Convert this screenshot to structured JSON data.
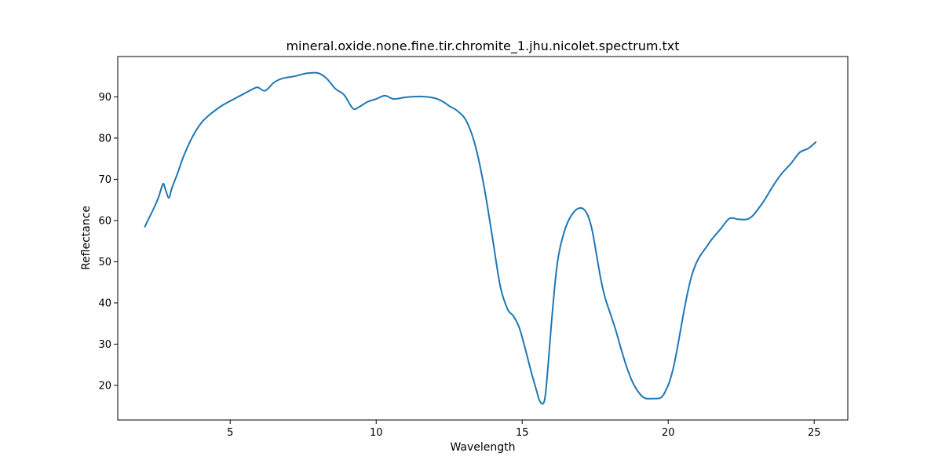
{
  "chart_data": {
    "type": "line",
    "title": "mineral.oxide.none.fine.tir.chromite_1.jhu.nicolet.spectrum.txt",
    "xlabel": "Wavelength",
    "ylabel": "Reflectance",
    "xlim": [
      1.15,
      26.15
    ],
    "ylim": [
      11.6,
      99.8
    ],
    "xticks": [
      5,
      10,
      15,
      20,
      25
    ],
    "yticks": [
      20,
      30,
      40,
      50,
      60,
      70,
      80,
      90
    ],
    "grid": false,
    "legend": "none",
    "series": [
      {
        "color": "#1f77b4",
        "x": [
          2.08,
          2.2,
          2.4,
          2.55,
          2.7,
          2.78,
          2.9,
          3.0,
          3.2,
          3.4,
          3.7,
          4.0,
          4.3,
          4.7,
          5.0,
          5.4,
          5.8,
          5.95,
          6.2,
          6.5,
          6.8,
          7.2,
          7.6,
          8.0,
          8.3,
          8.6,
          8.9,
          9.2,
          9.4,
          9.7,
          10.0,
          10.3,
          10.6,
          11.0,
          11.5,
          12.0,
          12.3,
          12.5,
          12.8,
          13.1,
          13.4,
          13.7,
          14.0,
          14.25,
          14.5,
          14.7,
          14.9,
          15.1,
          15.3,
          15.5,
          15.6,
          15.72,
          15.8,
          15.9,
          16.0,
          16.1,
          16.2,
          16.3,
          16.45,
          16.6,
          16.8,
          16.95,
          17.1,
          17.25,
          17.4,
          17.55,
          17.7,
          17.85,
          18.0,
          18.2,
          18.4,
          18.6,
          18.8,
          19.0,
          19.2,
          19.5,
          19.75,
          19.9,
          20.05,
          20.2,
          20.35,
          20.5,
          20.65,
          20.8,
          20.95,
          21.1,
          21.3,
          21.5,
          21.8,
          22.1,
          22.4,
          22.7,
          22.9,
          23.1,
          23.3,
          23.6,
          23.9,
          24.2,
          24.5,
          24.8,
          25.05
        ],
        "y": [
          58.5,
          60.3,
          63.2,
          65.7,
          68.9,
          67.6,
          65.5,
          67.8,
          71.5,
          75.5,
          80.2,
          83.6,
          85.7,
          87.8,
          89.0,
          90.5,
          92.0,
          92.3,
          91.5,
          93.5,
          94.5,
          95.0,
          95.7,
          95.8,
          94.5,
          92.0,
          90.5,
          87.2,
          87.5,
          88.8,
          89.5,
          90.3,
          89.5,
          89.9,
          90.1,
          89.7,
          88.8,
          87.8,
          86.5,
          84.0,
          78.0,
          68.0,
          55.0,
          44.0,
          38.5,
          36.8,
          34.0,
          29.0,
          23.5,
          18.5,
          16.2,
          15.6,
          18.0,
          26.0,
          35.0,
          43.0,
          49.5,
          53.5,
          57.5,
          60.2,
          62.3,
          63.0,
          62.8,
          61.2,
          57.5,
          51.5,
          45.5,
          41.0,
          37.8,
          33.5,
          28.5,
          24.0,
          20.5,
          18.2,
          16.9,
          16.8,
          17.0,
          18.5,
          21.0,
          25.0,
          30.5,
          36.5,
          42.0,
          46.5,
          49.5,
          51.5,
          53.5,
          55.5,
          58.0,
          60.5,
          60.3,
          60.3,
          61.2,
          63.0,
          65.0,
          68.5,
          71.5,
          73.8,
          76.5,
          77.5,
          79.0
        ]
      }
    ]
  }
}
